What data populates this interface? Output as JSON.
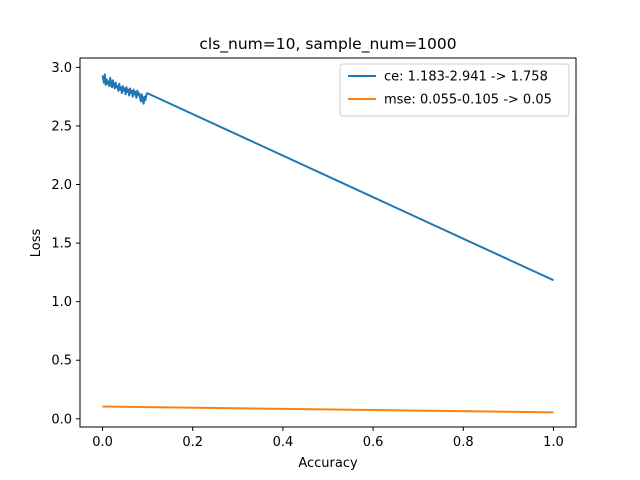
{
  "chart_data": {
    "type": "line",
    "title": "cls_num=10, sample_num=1000",
    "xlabel": "Accuracy",
    "ylabel": "Loss",
    "xlim": [
      -0.05,
      1.05
    ],
    "ylim": [
      -0.07,
      3.08
    ],
    "xticks": [
      0.0,
      0.2,
      0.4,
      0.6,
      0.8,
      1.0
    ],
    "xtick_labels": [
      "0.0",
      "0.2",
      "0.4",
      "0.6",
      "0.8",
      "1.0"
    ],
    "yticks": [
      0.0,
      0.5,
      1.0,
      1.5,
      2.0,
      2.5,
      3.0
    ],
    "ytick_labels": [
      "0.0",
      "0.5",
      "1.0",
      "1.5",
      "2.0",
      "2.5",
      "3.0"
    ],
    "grid": false,
    "legend_position": "upper-right",
    "series": [
      {
        "name": "ce: 1.183-2.941 -> 1.758",
        "color": "#1f77b4",
        "x": [
          0.0,
          0.003,
          0.005,
          0.007,
          0.009,
          0.011,
          0.013,
          0.015,
          0.017,
          0.019,
          0.021,
          0.023,
          0.025,
          0.027,
          0.029,
          0.031,
          0.033,
          0.035,
          0.037,
          0.039,
          0.041,
          0.043,
          0.045,
          0.047,
          0.049,
          0.051,
          0.053,
          0.055,
          0.057,
          0.059,
          0.061,
          0.063,
          0.065,
          0.067,
          0.069,
          0.071,
          0.073,
          0.075,
          0.077,
          0.079,
          0.081,
          0.083,
          0.085,
          0.087,
          0.089,
          0.091,
          0.093,
          0.095,
          0.097,
          0.099,
          1.0
        ],
        "y": [
          2.93,
          2.87,
          2.94,
          2.85,
          2.9,
          2.86,
          2.88,
          2.84,
          2.91,
          2.86,
          2.83,
          2.89,
          2.85,
          2.82,
          2.87,
          2.83,
          2.84,
          2.8,
          2.86,
          2.81,
          2.83,
          2.78,
          2.84,
          2.8,
          2.82,
          2.77,
          2.83,
          2.79,
          2.81,
          2.76,
          2.82,
          2.78,
          2.8,
          2.75,
          2.81,
          2.77,
          2.79,
          2.74,
          2.8,
          2.76,
          2.78,
          2.75,
          2.71,
          2.77,
          2.73,
          2.69,
          2.75,
          2.72,
          2.76,
          2.78,
          1.183
        ]
      },
      {
        "name": "mse: 0.055-0.105 -> 0.05",
        "color": "#ff7f0e",
        "x": [
          0.0,
          1.0
        ],
        "y": [
          0.105,
          0.055
        ]
      }
    ]
  }
}
